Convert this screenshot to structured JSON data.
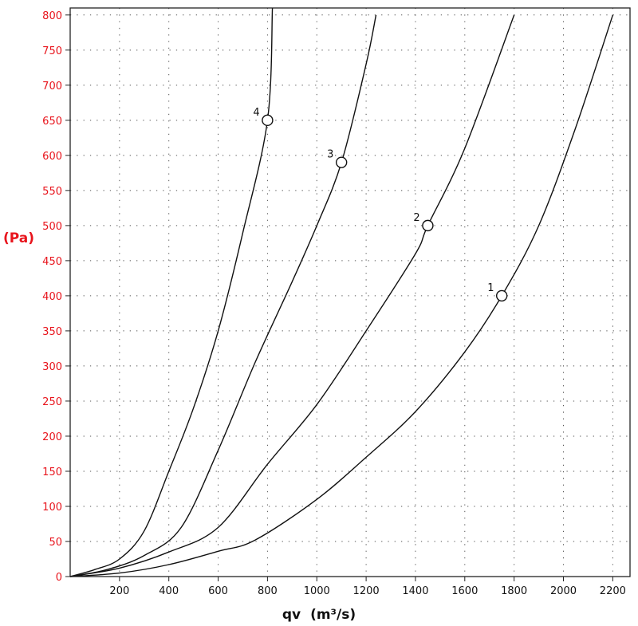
{
  "chart_data": {
    "type": "line",
    "title": "",
    "xlabel": "qv",
    "xlabel_unit": "(m³/s)",
    "ylabel": "(Pa)",
    "xlim": [
      0,
      2270
    ],
    "ylim": [
      0,
      810
    ],
    "grid": true,
    "x_ticks": [
      200,
      400,
      600,
      800,
      1000,
      1200,
      1400,
      1600,
      1800,
      2000,
      2200
    ],
    "y_ticks": [
      0,
      50,
      100,
      150,
      200,
      250,
      300,
      350,
      400,
      450,
      500,
      550,
      600,
      650,
      700,
      750,
      800
    ],
    "colors": {
      "ytick": "#e8141c",
      "ylabel": "#e8141c",
      "curve": "#111111",
      "grid": "#555555"
    },
    "series": [
      {
        "label": "1",
        "x": [
          0,
          200,
          400,
          600,
          750,
          1000,
          1200,
          1400,
          1600,
          1750,
          1900,
          2050,
          2200
        ],
        "y": [
          0,
          5,
          17,
          36,
          52,
          110,
          170,
          235,
          320,
          400,
          500,
          640,
          800
        ],
        "marker": {
          "x": 1750,
          "y": 400
        }
      },
      {
        "label": "2",
        "x": [
          0,
          200,
          400,
          600,
          800,
          1000,
          1200,
          1400,
          1450,
          1600,
          1800
        ],
        "y": [
          0,
          12,
          35,
          70,
          160,
          245,
          350,
          460,
          500,
          610,
          800
        ],
        "marker": {
          "x": 1450,
          "y": 500
        }
      },
      {
        "label": "3",
        "x": [
          0,
          150,
          300,
          450,
          600,
          750,
          900,
          1000,
          1100,
          1200,
          1240
        ],
        "y": [
          0,
          10,
          30,
          70,
          180,
          305,
          420,
          500,
          590,
          730,
          800
        ],
        "marker": {
          "x": 1100,
          "y": 590
        }
      },
      {
        "label": "4",
        "x": [
          0,
          100,
          200,
          300,
          400,
          500,
          600,
          700,
          800,
          820
        ],
        "y": [
          0,
          10,
          25,
          65,
          150,
          240,
          350,
          490,
          650,
          810
        ],
        "marker": {
          "x": 800,
          "y": 650
        }
      }
    ]
  }
}
